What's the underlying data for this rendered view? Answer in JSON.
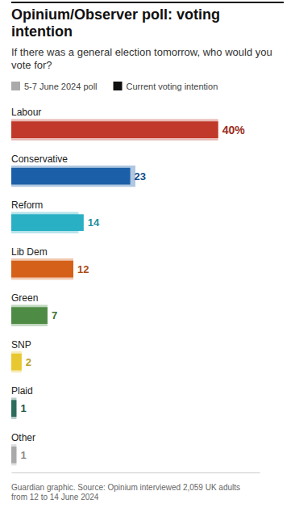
{
  "chart_data": {
    "type": "bar",
    "orientation": "horizontal",
    "title": "Opinium/Observer poll: voting intention",
    "subtitle": "If there was a general election tomorrow, who would you vote for?",
    "annotations": [
      "Guardian graphic. Source: Opinium interviewed 2,059 UK adults\nfrom 12 to 14 June 2024"
    ],
    "categories": [
      "Labour",
      "Conservative",
      "Reform",
      "Lib Dem",
      "Green",
      "SNP",
      "Plaid",
      "Other"
    ],
    "series": [
      {
        "name": "5-7 June 2024 poll",
        "color": "#aaaaaa",
        "colors": [
          "#c0392b",
          "#1a5fa8",
          "#2ab0c5",
          "#d4601a",
          "#4e8b44",
          "#e8c830",
          "#2d6b5c",
          "#aaaaaa"
        ],
        "values": [
          40,
          24,
          13,
          12,
          7,
          2,
          1,
          1
        ]
      },
      {
        "name": "Current voting intention",
        "color": "#111111",
        "colors": [
          "#c0392b",
          "#1a5fa8",
          "#2ab0c5",
          "#d4601a",
          "#4e8b44",
          "#e8c830",
          "#2d6b5c",
          "#aaaaaa"
        ],
        "values": [
          40,
          23,
          14,
          12,
          7,
          2,
          1,
          1
        ],
        "value_labels": [
          "40%",
          "23",
          "14",
          "12",
          "7",
          "2",
          "1",
          "1"
        ],
        "data_labels": true
      }
    ],
    "xlim": [
      0,
      48
    ],
    "legend": "top",
    "tick_labels": "y",
    "grid": false
  }
}
